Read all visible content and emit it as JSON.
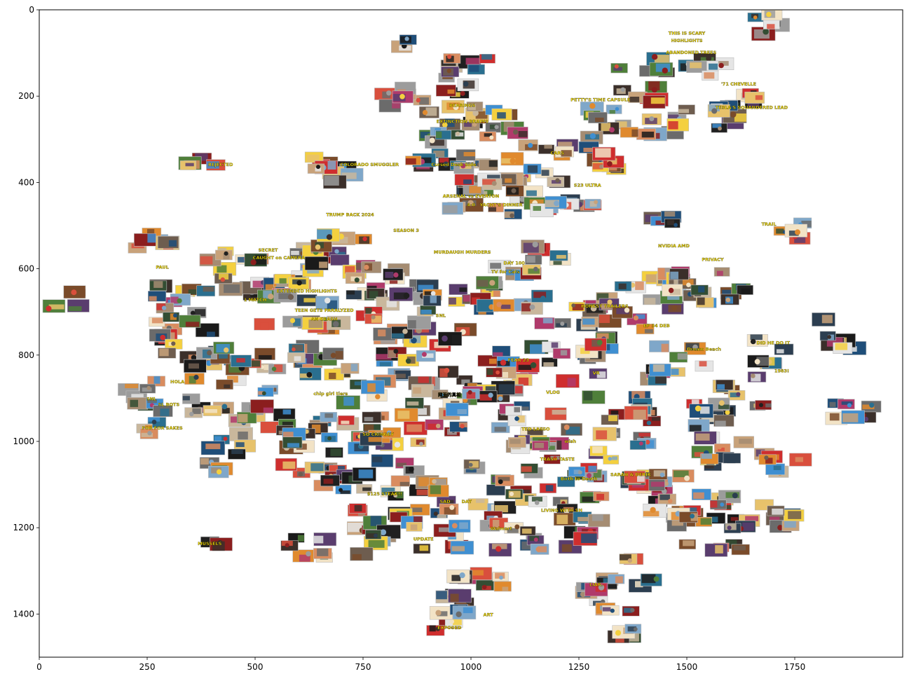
{
  "chart_data": {
    "type": "scatter",
    "marker": "thumbnail-images",
    "title": "",
    "xlabel": "",
    "ylabel": "",
    "xlim": [
      0,
      2000
    ],
    "ylim": [
      1500,
      0
    ],
    "y_inverted": true,
    "grid": false,
    "x_ticks": [
      0,
      250,
      500,
      750,
      1000,
      1250,
      1500,
      1750
    ],
    "x_tick_labels": [
      "0",
      "250",
      "500",
      "750",
      "1000",
      "1250",
      "1500",
      "1750"
    ],
    "y_ticks": [
      0,
      200,
      400,
      600,
      800,
      1000,
      1200,
      1400
    ],
    "y_tick_labels": [
      "0",
      "200",
      "400",
      "600",
      "800",
      "1000",
      "1200",
      "1400"
    ],
    "clusters": [
      {
        "x": 850,
        "y": 80,
        "n": 2
      },
      {
        "x": 1680,
        "y": 40,
        "n": 5
      },
      {
        "x": 1550,
        "y": 120,
        "n": 6
      },
      {
        "x": 1400,
        "y": 160,
        "n": 10
      },
      {
        "x": 1640,
        "y": 190,
        "n": 5
      },
      {
        "x": 1620,
        "y": 250,
        "n": 6
      },
      {
        "x": 1460,
        "y": 250,
        "n": 8
      },
      {
        "x": 1320,
        "y": 270,
        "n": 8
      },
      {
        "x": 1280,
        "y": 330,
        "n": 8
      },
      {
        "x": 1170,
        "y": 360,
        "n": 10
      },
      {
        "x": 1000,
        "y": 150,
        "n": 10
      },
      {
        "x": 840,
        "y": 190,
        "n": 6
      },
      {
        "x": 960,
        "y": 250,
        "n": 10
      },
      {
        "x": 1060,
        "y": 260,
        "n": 8
      },
      {
        "x": 920,
        "y": 330,
        "n": 8
      },
      {
        "x": 1030,
        "y": 370,
        "n": 10
      },
      {
        "x": 1130,
        "y": 440,
        "n": 8
      },
      {
        "x": 690,
        "y": 390,
        "n": 10
      },
      {
        "x": 1010,
        "y": 430,
        "n": 8
      },
      {
        "x": 1240,
        "y": 450,
        "n": 6
      },
      {
        "x": 1460,
        "y": 490,
        "n": 4
      },
      {
        "x": 1750,
        "y": 510,
        "n": 4
      },
      {
        "x": 380,
        "y": 340,
        "n": 4
      },
      {
        "x": 260,
        "y": 530,
        "n": 6
      },
      {
        "x": 320,
        "y": 660,
        "n": 8
      },
      {
        "x": 60,
        "y": 670,
        "n": 3
      },
      {
        "x": 340,
        "y": 750,
        "n": 10
      },
      {
        "x": 450,
        "y": 610,
        "n": 12
      },
      {
        "x": 560,
        "y": 590,
        "n": 10
      },
      {
        "x": 610,
        "y": 680,
        "n": 14
      },
      {
        "x": 700,
        "y": 560,
        "n": 10
      },
      {
        "x": 800,
        "y": 600,
        "n": 14
      },
      {
        "x": 830,
        "y": 720,
        "n": 14
      },
      {
        "x": 960,
        "y": 690,
        "n": 14
      },
      {
        "x": 1080,
        "y": 640,
        "n": 10
      },
      {
        "x": 1180,
        "y": 580,
        "n": 6
      },
      {
        "x": 1230,
        "y": 720,
        "n": 14
      },
      {
        "x": 1400,
        "y": 680,
        "n": 14
      },
      {
        "x": 1520,
        "y": 620,
        "n": 10
      },
      {
        "x": 1580,
        "y": 680,
        "n": 8
      },
      {
        "x": 1860,
        "y": 750,
        "n": 6
      },
      {
        "x": 1680,
        "y": 800,
        "n": 6
      },
      {
        "x": 1640,
        "y": 890,
        "n": 8
      },
      {
        "x": 1880,
        "y": 930,
        "n": 6
      },
      {
        "x": 1480,
        "y": 820,
        "n": 10
      },
      {
        "x": 1260,
        "y": 820,
        "n": 12
      },
      {
        "x": 1050,
        "y": 840,
        "n": 14
      },
      {
        "x": 880,
        "y": 820,
        "n": 14
      },
      {
        "x": 700,
        "y": 840,
        "n": 14
      },
      {
        "x": 520,
        "y": 830,
        "n": 12
      },
      {
        "x": 360,
        "y": 830,
        "n": 10
      },
      {
        "x": 240,
        "y": 900,
        "n": 8
      },
      {
        "x": 390,
        "y": 900,
        "n": 6
      },
      {
        "x": 260,
        "y": 960,
        "n": 3
      },
      {
        "x": 480,
        "y": 960,
        "n": 8
      },
      {
        "x": 640,
        "y": 960,
        "n": 12
      },
      {
        "x": 820,
        "y": 960,
        "n": 12
      },
      {
        "x": 1000,
        "y": 930,
        "n": 14
      },
      {
        "x": 1160,
        "y": 960,
        "n": 12
      },
      {
        "x": 1360,
        "y": 940,
        "n": 12
      },
      {
        "x": 1530,
        "y": 950,
        "n": 10
      },
      {
        "x": 440,
        "y": 1040,
        "n": 6
      },
      {
        "x": 630,
        "y": 1030,
        "n": 10
      },
      {
        "x": 790,
        "y": 1010,
        "n": 8
      },
      {
        "x": 1170,
        "y": 1030,
        "n": 10
      },
      {
        "x": 1360,
        "y": 1050,
        "n": 10
      },
      {
        "x": 1580,
        "y": 1040,
        "n": 8
      },
      {
        "x": 1720,
        "y": 1050,
        "n": 6
      },
      {
        "x": 700,
        "y": 1100,
        "n": 8
      },
      {
        "x": 880,
        "y": 1120,
        "n": 12
      },
      {
        "x": 1060,
        "y": 1100,
        "n": 12
      },
      {
        "x": 1230,
        "y": 1110,
        "n": 12
      },
      {
        "x": 1420,
        "y": 1110,
        "n": 12
      },
      {
        "x": 1560,
        "y": 1150,
        "n": 10
      },
      {
        "x": 1700,
        "y": 1170,
        "n": 8
      },
      {
        "x": 780,
        "y": 1200,
        "n": 10
      },
      {
        "x": 930,
        "y": 1200,
        "n": 10
      },
      {
        "x": 1100,
        "y": 1210,
        "n": 10
      },
      {
        "x": 1260,
        "y": 1210,
        "n": 8
      },
      {
        "x": 1480,
        "y": 1200,
        "n": 8
      },
      {
        "x": 1600,
        "y": 1230,
        "n": 6
      },
      {
        "x": 400,
        "y": 1240,
        "n": 2
      },
      {
        "x": 620,
        "y": 1240,
        "n": 6
      },
      {
        "x": 780,
        "y": 1240,
        "n": 4
      },
      {
        "x": 1010,
        "y": 1300,
        "n": 4
      },
      {
        "x": 1370,
        "y": 1310,
        "n": 8
      },
      {
        "x": 1290,
        "y": 1360,
        "n": 6
      },
      {
        "x": 1010,
        "y": 1360,
        "n": 10
      },
      {
        "x": 940,
        "y": 1420,
        "n": 6
      },
      {
        "x": 1340,
        "y": 1420,
        "n": 6
      }
    ],
    "annotations": [
      {
        "x": 1500,
        "y": 58,
        "text": "THIS IS SCARY"
      },
      {
        "x": 1500,
        "y": 75,
        "text": "HIGHLIGHTS"
      },
      {
        "x": 1510,
        "y": 102,
        "text": "ABANDONED TREES"
      },
      {
        "x": 1620,
        "y": 175,
        "text": "'71 CHEVELLE"
      },
      {
        "x": 1650,
        "y": 230,
        "text": "TESLA'S SQUANDERED LEAD"
      },
      {
        "x": 1300,
        "y": 212,
        "text": "PETTY'S TIME CAPSULE"
      },
      {
        "x": 980,
        "y": 225,
        "text": "BEARINGS"
      },
      {
        "x": 980,
        "y": 262,
        "text": "EXTINCTION BRAINS"
      },
      {
        "x": 1200,
        "y": 335,
        "text": "CARS"
      },
      {
        "x": 420,
        "y": 362,
        "text": "REJECTED"
      },
      {
        "x": 765,
        "y": 362,
        "text": "COLORADO SMUGGLER"
      },
      {
        "x": 960,
        "y": 362,
        "text": "Cursed Desk Side"
      },
      {
        "x": 1270,
        "y": 410,
        "text": "S23 ULTRA"
      },
      {
        "x": 1000,
        "y": 435,
        "text": "ARSENAL vs EVERTON"
      },
      {
        "x": 1000,
        "y": 455,
        "text": "4-0"
      },
      {
        "x": 1070,
        "y": 455,
        "text": "YACHT'S DINNER"
      },
      {
        "x": 720,
        "y": 478,
        "text": "TRUMP BACK 2024"
      },
      {
        "x": 850,
        "y": 515,
        "text": "SEASON 3"
      },
      {
        "x": 1690,
        "y": 500,
        "text": "TRAIL"
      },
      {
        "x": 980,
        "y": 565,
        "text": "MURDAUGH MURDERS"
      },
      {
        "x": 1080,
        "y": 610,
        "text": "TV for Cats"
      },
      {
        "x": 1100,
        "y": 590,
        "text": "DAY 100"
      },
      {
        "x": 1560,
        "y": 582,
        "text": "PRIVACY"
      },
      {
        "x": 1470,
        "y": 550,
        "text": "NVIDIA AMD"
      },
      {
        "x": 555,
        "y": 578,
        "text": "CAUGHT on CAMERA"
      },
      {
        "x": 530,
        "y": 560,
        "text": "SECRET"
      },
      {
        "x": 285,
        "y": 600,
        "text": "PAUL"
      },
      {
        "x": 620,
        "y": 655,
        "text": "EXTENDED HIGHLIGHTS"
      },
      {
        "x": 660,
        "y": 700,
        "text": "TEEN GETS PARALYZED"
      },
      {
        "x": 660,
        "y": 720,
        "text": "AN CRASH"
      },
      {
        "x": 500,
        "y": 675,
        "text": "1 MATCH"
      },
      {
        "x": 930,
        "y": 712,
        "text": "SNL"
      },
      {
        "x": 1310,
        "y": 690,
        "text": "HONEST TRAILERS"
      },
      {
        "x": 1430,
        "y": 735,
        "text": "EP 34 DEB"
      },
      {
        "x": 1540,
        "y": 790,
        "text": "Dream Beach"
      },
      {
        "x": 1700,
        "y": 775,
        "text": "DID HE DO IT"
      },
      {
        "x": 1720,
        "y": 840,
        "text": "1983!"
      },
      {
        "x": 1110,
        "y": 815,
        "text": "FEAR 23"
      },
      {
        "x": 1290,
        "y": 845,
        "text": "VR"
      },
      {
        "x": 1190,
        "y": 890,
        "text": "VLOG"
      },
      {
        "x": 260,
        "y": 905,
        "text": "SNL"
      },
      {
        "x": 300,
        "y": 918,
        "text": "SL BOTS"
      },
      {
        "x": 285,
        "y": 972,
        "text": "FOR FOX SAKES"
      },
      {
        "x": 320,
        "y": 865,
        "text": "HOLA"
      },
      {
        "x": 675,
        "y": 893,
        "text": "chip girl tiers"
      },
      {
        "x": 785,
        "y": 987,
        "text": "SO CRINGEY"
      },
      {
        "x": 950,
        "y": 895,
        "text": "网王的真相"
      },
      {
        "x": 1150,
        "y": 975,
        "text": "TED LASSO"
      },
      {
        "x": 1230,
        "y": 1003,
        "text": "wish"
      },
      {
        "x": 1200,
        "y": 1045,
        "text": "TRASH TASTE"
      },
      {
        "x": 1370,
        "y": 1080,
        "text": "SARAH & DERIK"
      },
      {
        "x": 1250,
        "y": 1090,
        "text": "Birth to Death"
      },
      {
        "x": 800,
        "y": 1125,
        "text": "$125 STEAK!!"
      },
      {
        "x": 940,
        "y": 1143,
        "text": "SAD"
      },
      {
        "x": 990,
        "y": 1143,
        "text": "DAY"
      },
      {
        "x": 1070,
        "y": 1205,
        "text": "Walmart"
      },
      {
        "x": 1210,
        "y": 1163,
        "text": "LIVING WITH SH"
      },
      {
        "x": 890,
        "y": 1230,
        "text": "UPDATE"
      },
      {
        "x": 1290,
        "y": 1335,
        "text": "LIAR."
      },
      {
        "x": 950,
        "y": 1435,
        "text": "EXPOSED"
      },
      {
        "x": 395,
        "y": 1240,
        "text": "MUSSELS"
      },
      {
        "x": 1040,
        "y": 1405,
        "text": "ART"
      }
    ]
  }
}
